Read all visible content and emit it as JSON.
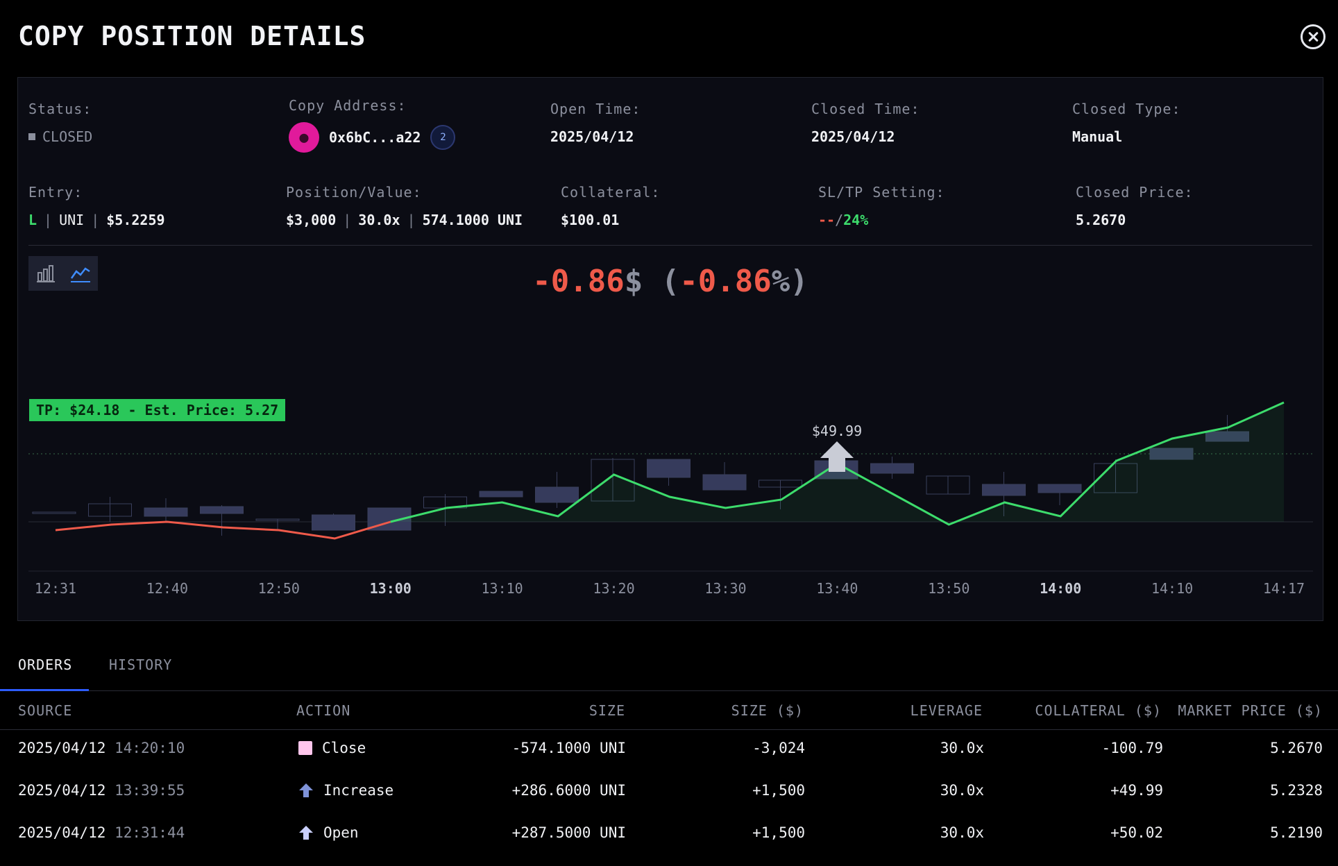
{
  "title": "COPY POSITION DETAILS",
  "info_row1": {
    "status": {
      "label": "Status:",
      "value": "CLOSED"
    },
    "copy_address": {
      "label": "Copy Address:",
      "value": "0x6bC...a22",
      "chain_badge": "2"
    },
    "open_time": {
      "label": "Open Time:",
      "value": "2025/04/12"
    },
    "closed_time": {
      "label": "Closed Time:",
      "value": "2025/04/12"
    },
    "closed_type": {
      "label": "Closed Type:",
      "value": "Manual"
    }
  },
  "info_row2": {
    "entry": {
      "label": "Entry:",
      "side": "L",
      "token": "UNI",
      "price": "$5.2259"
    },
    "position_value": {
      "label": "Position/Value:",
      "value": "$3,000",
      "leverage": "30.0x",
      "amount": "574.1000 UNI"
    },
    "collateral": {
      "label": "Collateral:",
      "value": "$100.01"
    },
    "sltp": {
      "label": "SL/TP Setting:",
      "sl": "--",
      "slash": "/",
      "tp": "24%"
    },
    "closed_price": {
      "label": "Closed Price:",
      "value": "5.2670"
    }
  },
  "pnl": {
    "amount": "-0.86",
    "amount_unit": "$",
    "open_paren": "(",
    "percent": "-0.86",
    "percent_unit": "%)"
  },
  "tp_label": "TP: $24.18 - Est. Price: 5.27",
  "increase_bubble": "$49.99",
  "chart_data": {
    "type": "line",
    "x_ticks": [
      "12:31",
      "12:40",
      "12:50",
      "13:00",
      "13:10",
      "13:20",
      "13:30",
      "13:40",
      "13:50",
      "14:00",
      "14:10",
      "14:17"
    ],
    "bold_ticks": [
      "13:00",
      "14:00"
    ],
    "pnl_line": [
      -0.3,
      -0.1,
      0.0,
      -0.2,
      -0.3,
      -0.6,
      0.0,
      0.5,
      0.7,
      0.2,
      1.7,
      0.9,
      0.5,
      0.8,
      2.1,
      1.0,
      -0.1,
      0.7,
      0.2,
      2.2,
      3.0,
      3.4,
      4.3
    ],
    "candles": [
      {
        "o": 0.35,
        "c": 0.35,
        "h": 0.35,
        "l": 0.35
      },
      {
        "o": 0.2,
        "c": 0.65,
        "h": 0.9,
        "l": 0.0
      },
      {
        "o": 0.2,
        "c": 0.5,
        "h": 0.85,
        "l": 0.0
      },
      {
        "o": 0.3,
        "c": 0.55,
        "h": 0.6,
        "l": -0.5
      },
      {
        "o": 0.1,
        "c": 0.1,
        "h": 0.1,
        "l": -0.3
      },
      {
        "o": -0.3,
        "c": 0.25,
        "h": 0.3,
        "l": -0.3
      },
      {
        "o": -0.3,
        "c": 0.5,
        "h": 0.5,
        "l": -0.3
      },
      {
        "o": 0.5,
        "c": 0.9,
        "h": 1.0,
        "l": -0.15
      },
      {
        "o": 0.9,
        "c": 1.1,
        "h": 1.1,
        "l": 0.9
      },
      {
        "o": 0.7,
        "c": 1.25,
        "h": 1.8,
        "l": 0.5
      },
      {
        "o": 0.75,
        "c": 2.25,
        "h": 2.3,
        "l": 0.75
      },
      {
        "o": 1.6,
        "c": 2.25,
        "h": 2.25,
        "l": 1.3
      },
      {
        "o": 1.15,
        "c": 1.7,
        "h": 2.15,
        "l": 1.15
      },
      {
        "o": 1.25,
        "c": 1.5,
        "h": 1.5,
        "l": 0.45
      },
      {
        "o": 1.55,
        "c": 2.2,
        "h": 2.2,
        "l": 1.55
      },
      {
        "o": 1.75,
        "c": 2.1,
        "h": 2.35,
        "l": 1.55
      },
      {
        "o": 1.0,
        "c": 1.65,
        "h": 1.65,
        "l": 1.0
      },
      {
        "o": 0.95,
        "c": 1.35,
        "h": 1.8,
        "l": 0.2
      },
      {
        "o": 1.05,
        "c": 1.35,
        "h": 1.35,
        "l": 0.6
      },
      {
        "o": 1.05,
        "c": 2.1,
        "h": 2.25,
        "l": 1.05
      },
      {
        "o": 2.25,
        "c": 2.65,
        "h": 2.65,
        "l": 2.25
      },
      {
        "o": 2.9,
        "c": 3.25,
        "h": 3.85,
        "l": 2.9
      }
    ],
    "tp_level": 2.45,
    "zero_level": 0
  },
  "tabs": [
    {
      "label": "ORDERS"
    },
    {
      "label": "HISTORY"
    }
  ],
  "table": {
    "headers": [
      "SOURCE",
      "ACTION",
      "SIZE",
      "SIZE ($)",
      "LEVERAGE",
      "COLLATERAL ($)",
      "MARKET PRICE ($)"
    ],
    "rows": [
      {
        "date": "2025/04/12",
        "time": "14:20:10",
        "action": "Close",
        "icon": "close-square-icon",
        "size": "-574.1000 UNI",
        "size_usd": "-3,024",
        "leverage": "30.0x",
        "collateral": "-100.79",
        "price": "5.2670"
      },
      {
        "date": "2025/04/12",
        "time": "13:39:55",
        "action": "Increase",
        "icon": "arrow-up-icon",
        "size": "+286.6000 UNI",
        "size_usd": "+1,500",
        "leverage": "30.0x",
        "collateral": "+49.99",
        "price": "5.2328"
      },
      {
        "date": "2025/04/12",
        "time": "12:31:44",
        "action": "Open",
        "icon": "arrow-up-icon",
        "size": "+287.5000 UNI",
        "size_usd": "+1,500",
        "leverage": "30.0x",
        "collateral": "+50.02",
        "price": "5.2190"
      }
    ]
  },
  "colors": {
    "profit": "#3ddc6c",
    "loss": "#ef5a4a",
    "candle": "#3a3f5c",
    "accent": "#2d5cff"
  }
}
